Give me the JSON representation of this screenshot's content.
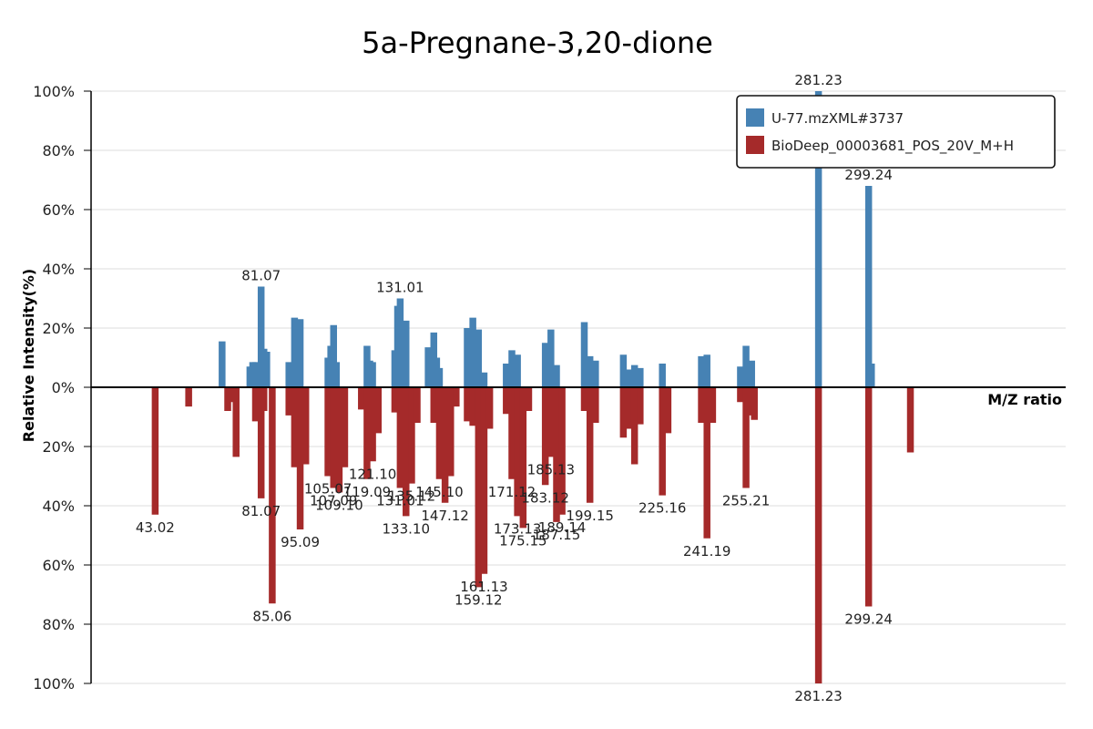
{
  "chart_data": {
    "type": "bar",
    "title": "5a-Pregnane-3,20-dione",
    "xlabel": "M/Z ratio",
    "ylabel": "Relative Intensity(%)",
    "xlim": [
      20,
      370
    ],
    "ylim": [
      -100,
      100
    ],
    "yticks": [
      {
        "value": 100,
        "label": "100%"
      },
      {
        "value": 80,
        "label": "80%"
      },
      {
        "value": 60,
        "label": "60%"
      },
      {
        "value": 40,
        "label": "40%"
      },
      {
        "value": 20,
        "label": "20%"
      },
      {
        "value": 0,
        "label": "0%"
      },
      {
        "value": -20,
        "label": "20%"
      },
      {
        "value": -40,
        "label": "40%"
      },
      {
        "value": -60,
        "label": "60%"
      },
      {
        "value": -80,
        "label": "80%"
      },
      {
        "value": -100,
        "label": "100%"
      }
    ],
    "grid": true,
    "legend_position": "top-right",
    "series": [
      {
        "name": "U-77.mzXML#3737",
        "color": "#4682b4",
        "points": [
          {
            "mz": 67.05,
            "value": 15.5
          },
          {
            "mz": 77.04,
            "value": 7
          },
          {
            "mz": 78.05,
            "value": 8.5
          },
          {
            "mz": 79.05,
            "value": 8.5
          },
          {
            "mz": 81.07,
            "value": 34,
            "label": "81.07"
          },
          {
            "mz": 82.07,
            "value": 13
          },
          {
            "mz": 83.08,
            "value": 12
          },
          {
            "mz": 91.05,
            "value": 8.5
          },
          {
            "mz": 93.07,
            "value": 23.5
          },
          {
            "mz": 94.07,
            "value": 6.5
          },
          {
            "mz": 95.09,
            "value": 23
          },
          {
            "mz": 105.07,
            "value": 10
          },
          {
            "mz": 106.08,
            "value": 14
          },
          {
            "mz": 107.09,
            "value": 21
          },
          {
            "mz": 108.09,
            "value": 8.5
          },
          {
            "mz": 119.09,
            "value": 14
          },
          {
            "mz": 120.09,
            "value": 9
          },
          {
            "mz": 121.1,
            "value": 8.5
          },
          {
            "mz": 129.07,
            "value": 12.5
          },
          {
            "mz": 130.08,
            "value": 27.5
          },
          {
            "mz": 131.01,
            "value": 30,
            "label": "131.01"
          },
          {
            "mz": 132.08,
            "value": 14.5
          },
          {
            "mz": 133.1,
            "value": 22.5
          },
          {
            "mz": 141.07,
            "value": 13.5
          },
          {
            "mz": 143.08,
            "value": 18.5
          },
          {
            "mz": 144.09,
            "value": 10
          },
          {
            "mz": 145.1,
            "value": 6.5
          },
          {
            "mz": 155.09,
            "value": 20
          },
          {
            "mz": 157.1,
            "value": 23.5
          },
          {
            "mz": 159.12,
            "value": 19.5
          },
          {
            "mz": 161.13,
            "value": 5
          },
          {
            "mz": 169.1,
            "value": 8
          },
          {
            "mz": 171.12,
            "value": 12.5
          },
          {
            "mz": 173.13,
            "value": 11
          },
          {
            "mz": 183.12,
            "value": 15
          },
          {
            "mz": 185.13,
            "value": 19.5
          },
          {
            "mz": 187.15,
            "value": 7.5
          },
          {
            "mz": 197.13,
            "value": 22
          },
          {
            "mz": 199.15,
            "value": 10.5
          },
          {
            "mz": 201.16,
            "value": 9
          },
          {
            "mz": 211.15,
            "value": 11
          },
          {
            "mz": 213.16,
            "value": 6
          },
          {
            "mz": 215.17,
            "value": 7.5
          },
          {
            "mz": 217.18,
            "value": 6.5
          },
          {
            "mz": 225.16,
            "value": 8
          },
          {
            "mz": 239.18,
            "value": 10.5
          },
          {
            "mz": 241.19,
            "value": 11
          },
          {
            "mz": 253.2,
            "value": 7
          },
          {
            "mz": 255.21,
            "value": 14
          },
          {
            "mz": 257.22,
            "value": 9
          },
          {
            "mz": 281.23,
            "value": 100,
            "label": "281.23"
          },
          {
            "mz": 299.24,
            "value": 68,
            "label": "299.24"
          },
          {
            "mz": 300.25,
            "value": 8
          }
        ]
      },
      {
        "name": "BioDeep_00003681_POS_20V_M+H",
        "color": "#a52a2a",
        "points": [
          {
            "mz": 43.02,
            "value": 43,
            "label": "43.02"
          },
          {
            "mz": 55.05,
            "value": 6.5
          },
          {
            "mz": 69.07,
            "value": 8
          },
          {
            "mz": 71.09,
            "value": 5
          },
          {
            "mz": 72.08,
            "value": 23.5
          },
          {
            "mz": 79.05,
            "value": 11.5
          },
          {
            "mz": 81.07,
            "value": 37.5,
            "label": "81.07"
          },
          {
            "mz": 82.07,
            "value": 8
          },
          {
            "mz": 85.06,
            "value": 73,
            "label": "85.06"
          },
          {
            "mz": 91.05,
            "value": 9.5
          },
          {
            "mz": 93.07,
            "value": 27
          },
          {
            "mz": 95.09,
            "value": 48,
            "label": "95.09"
          },
          {
            "mz": 96.09,
            "value": 8
          },
          {
            "mz": 97.1,
            "value": 26
          },
          {
            "mz": 105.07,
            "value": 30,
            "label": "105.07"
          },
          {
            "mz": 107.09,
            "value": 34,
            "label": "107.09"
          },
          {
            "mz": 109.1,
            "value": 35.5,
            "label": "109.10"
          },
          {
            "mz": 111.08,
            "value": 27
          },
          {
            "mz": 117.08,
            "value": 7.5
          },
          {
            "mz": 119.09,
            "value": 31,
            "label": "119.09"
          },
          {
            "mz": 121.1,
            "value": 25,
            "label": "121.10"
          },
          {
            "mz": 123.12,
            "value": 15.5
          },
          {
            "mz": 129.07,
            "value": 8.5
          },
          {
            "mz": 131.01,
            "value": 34,
            "label": "131.01"
          },
          {
            "mz": 133.1,
            "value": 43.5,
            "label": "133.10"
          },
          {
            "mz": 135.12,
            "value": 32.5,
            "label": "135.12"
          },
          {
            "mz": 137.1,
            "value": 12
          },
          {
            "mz": 143.08,
            "value": 12
          },
          {
            "mz": 145.1,
            "value": 31,
            "label": "145.10"
          },
          {
            "mz": 147.12,
            "value": 39,
            "label": "147.12"
          },
          {
            "mz": 149.13,
            "value": 30
          },
          {
            "mz": 151.11,
            "value": 6.5
          },
          {
            "mz": 155.09,
            "value": 11.5
          },
          {
            "mz": 157.1,
            "value": 13
          },
          {
            "mz": 159.12,
            "value": 67.5,
            "label": "159.12"
          },
          {
            "mz": 161.13,
            "value": 63,
            "label": "161.13"
          },
          {
            "mz": 163.15,
            "value": 14
          },
          {
            "mz": 169.1,
            "value": 9
          },
          {
            "mz": 171.12,
            "value": 31,
            "label": "171.12"
          },
          {
            "mz": 173.13,
            "value": 43.5,
            "label": "173.13"
          },
          {
            "mz": 175.15,
            "value": 47.5,
            "label": "175.15"
          },
          {
            "mz": 177.16,
            "value": 8
          },
          {
            "mz": 183.12,
            "value": 33,
            "label": "183.12"
          },
          {
            "mz": 185.13,
            "value": 23.5,
            "label": "185.13"
          },
          {
            "mz": 187.15,
            "value": 45.5,
            "label": "187.15"
          },
          {
            "mz": 189.14,
            "value": 43,
            "label": "189.14"
          },
          {
            "mz": 197.13,
            "value": 8
          },
          {
            "mz": 199.15,
            "value": 39,
            "label": "199.15"
          },
          {
            "mz": 201.16,
            "value": 12
          },
          {
            "mz": 211.15,
            "value": 17
          },
          {
            "mz": 213.16,
            "value": 14
          },
          {
            "mz": 215.17,
            "value": 26
          },
          {
            "mz": 217.18,
            "value": 12.5
          },
          {
            "mz": 225.16,
            "value": 36.5,
            "label": "225.16"
          },
          {
            "mz": 227.18,
            "value": 15.5
          },
          {
            "mz": 239.18,
            "value": 12
          },
          {
            "mz": 241.19,
            "value": 51,
            "label": "241.19"
          },
          {
            "mz": 243.21,
            "value": 12
          },
          {
            "mz": 253.2,
            "value": 5
          },
          {
            "mz": 255.21,
            "value": 34,
            "label": "255.21"
          },
          {
            "mz": 257.22,
            "value": 9.5
          },
          {
            "mz": 258.2,
            "value": 11
          },
          {
            "mz": 281.23,
            "value": 100,
            "label": "281.23"
          },
          {
            "mz": 299.24,
            "value": 74,
            "label": "299.24"
          },
          {
            "mz": 314.24,
            "value": 22
          }
        ]
      }
    ]
  }
}
